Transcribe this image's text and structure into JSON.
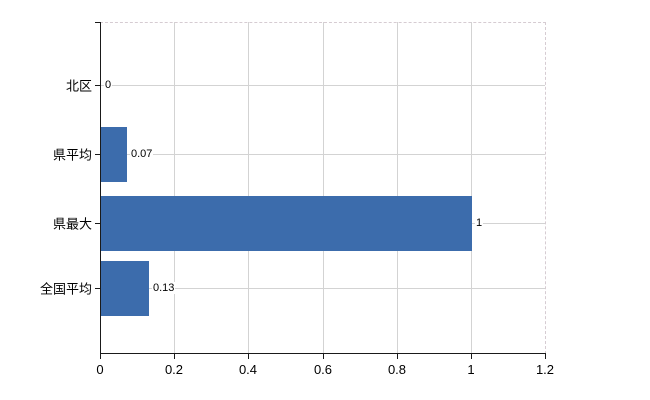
{
  "chart": {
    "background_color": "#ffffff",
    "bar_color": "#3c6cac",
    "grid_color": "#d3d3d3",
    "border_dash_color": "#d6ccd2",
    "axis_color": "#1a1a1a",
    "label_color": "#000000"
  },
  "chart_data": {
    "type": "bar",
    "orientation": "horizontal",
    "title": "",
    "categories": [
      "北区",
      "県平均",
      "県最大",
      "全国平均"
    ],
    "values": [
      0,
      0.07,
      1,
      0.13
    ],
    "value_labels": [
      "0",
      "0.07",
      "1",
      "0.13"
    ],
    "x_ticks": [
      0,
      0.2,
      0.4,
      0.6,
      0.8,
      1,
      1.2
    ],
    "x_tick_labels": [
      "0",
      "0.2",
      "0.4",
      "0.6",
      "0.8",
      "1",
      "1.2"
    ],
    "xlim": [
      0,
      1.2
    ],
    "grid": true,
    "legend": false
  }
}
